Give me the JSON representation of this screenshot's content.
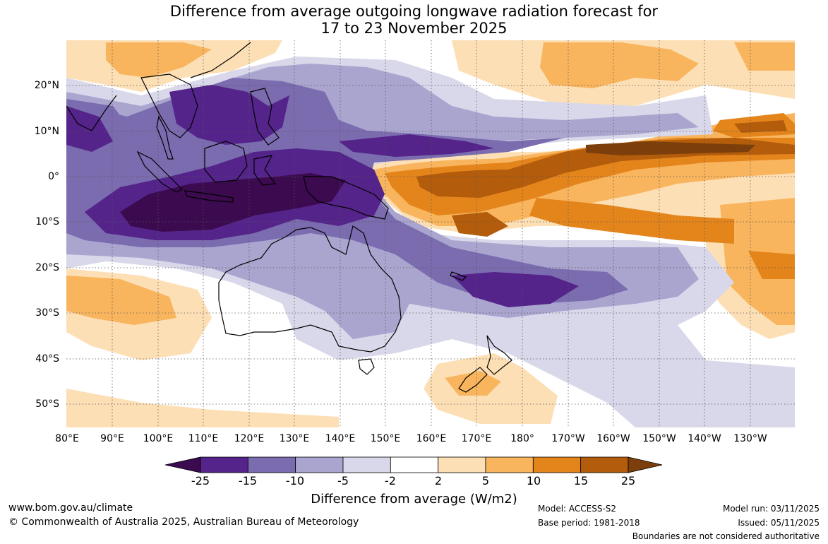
{
  "title_line1": "Difference from average outgoing longwave radiation forecast for",
  "title_line2": "17 to 23 November 2025",
  "map": {
    "lon_labels": [
      "80°E",
      "90°E",
      "100°E",
      "110°E",
      "120°E",
      "130°E",
      "140°E",
      "150°E",
      "160°E",
      "170°E",
      "180°",
      "170°W",
      "160°W",
      "150°W",
      "140°W",
      "130°W"
    ],
    "lat_labels": [
      "20°N",
      "10°N",
      "0°",
      "10°S",
      "20°S",
      "30°S",
      "40°S",
      "50°S"
    ],
    "lon_range_deg_east": [
      80,
      240
    ],
    "lat_range": [
      -55,
      30
    ],
    "anomaly_regions": [
      {
        "name": "northern-australia-maritime-negative",
        "value": -25
      },
      {
        "name": "western-pacific-positive",
        "value": 25
      },
      {
        "name": "south-pacific-convergence-negative",
        "value": -15
      },
      {
        "name": "north-pacific-positive",
        "value": 10
      },
      {
        "name": "new-zealand-positive",
        "value": 5
      }
    ]
  },
  "colorbar": {
    "ticks": [
      "-25",
      "-15",
      "-10",
      "-5",
      "-2",
      "2",
      "5",
      "10",
      "15",
      "25"
    ],
    "colors": [
      "#3b0a4f",
      "#54248a",
      "#7b6baf",
      "#a9a5cf",
      "#d8d8ea",
      "#ffffff",
      "#fddfb5",
      "#f8b55e",
      "#e4851c",
      "#b35c0c",
      "#7c3f0b"
    ],
    "label": "Difference from average (W/m2)"
  },
  "footer": {
    "website": "www.bom.gov.au/climate",
    "copyright": "© Commonwealth of Australia 2025, Australian Bureau of Meteorology",
    "model": "Model: ACCESS-S2",
    "base_period": "Base period: 1981-2018",
    "model_run": "Model run: 03/11/2025",
    "issued": "Issued: 05/11/2025",
    "disclaimer": "Boundaries are not considered authoritative"
  }
}
